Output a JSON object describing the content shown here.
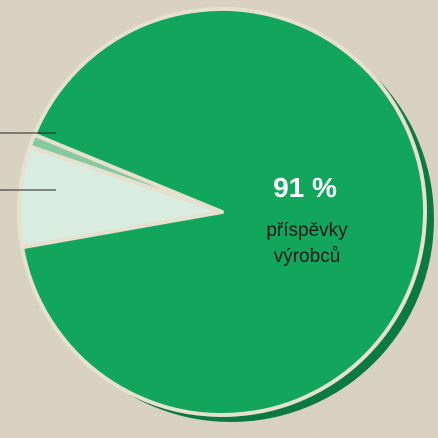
{
  "chart_data": {
    "type": "pie",
    "categories": [
      null,
      null,
      "příspěvky výrobců"
    ],
    "values": [
      8,
      1,
      91
    ],
    "value_labels": [
      null,
      null,
      "91 %"
    ],
    "colors": [
      "#d9ece1",
      "#86c9a0",
      "#12a55c"
    ]
  }
}
